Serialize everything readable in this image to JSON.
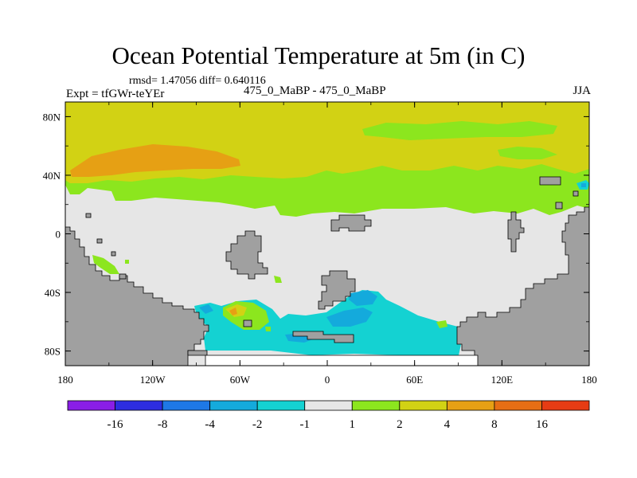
{
  "chart_data": {
    "type": "heatmap",
    "title": "Ocean Potential Temperature at 5m (in C)",
    "stats_label": "rmsd= 1.47056 diff= 0.640116",
    "left_label": "Expt = tfGWr-teYEr",
    "center_label": "475_0_MaBP - 475_0_MaBP",
    "right_label": "JJA",
    "x_axis": {
      "ticks": [
        "180",
        "120W",
        "60W",
        "0",
        "60E",
        "120E",
        "180"
      ],
      "range": [
        -180,
        180
      ]
    },
    "y_axis": {
      "ticks": [
        "80N",
        "40N",
        "0",
        "40S",
        "80S"
      ],
      "range": [
        -90,
        90
      ]
    },
    "colorbar": {
      "labels": [
        "-16",
        "-8",
        "-4",
        "-2",
        "-1",
        "1",
        "2",
        "4",
        "8",
        "16"
      ],
      "colors": [
        "#8a1ee6",
        "#2d2de0",
        "#1e78e6",
        "#14aadc",
        "#14d2d2",
        "#e6e6e6",
        "#8ce61e",
        "#d2d214",
        "#e6a014",
        "#e66e14",
        "#e63c14"
      ]
    },
    "regions": [
      {
        "name": "northern-high-lat-anomaly",
        "level": "2 to 4"
      },
      {
        "name": "north-pacific-max",
        "level": "4 to 8"
      },
      {
        "name": "tropical-band",
        "level": "-1 to 1"
      },
      {
        "name": "southern-ocean-cold",
        "level": "-2 to -1"
      }
    ]
  },
  "colors": {
    "land": "#a0a0a0",
    "frame": "#000000",
    "background": "#ffffff"
  }
}
